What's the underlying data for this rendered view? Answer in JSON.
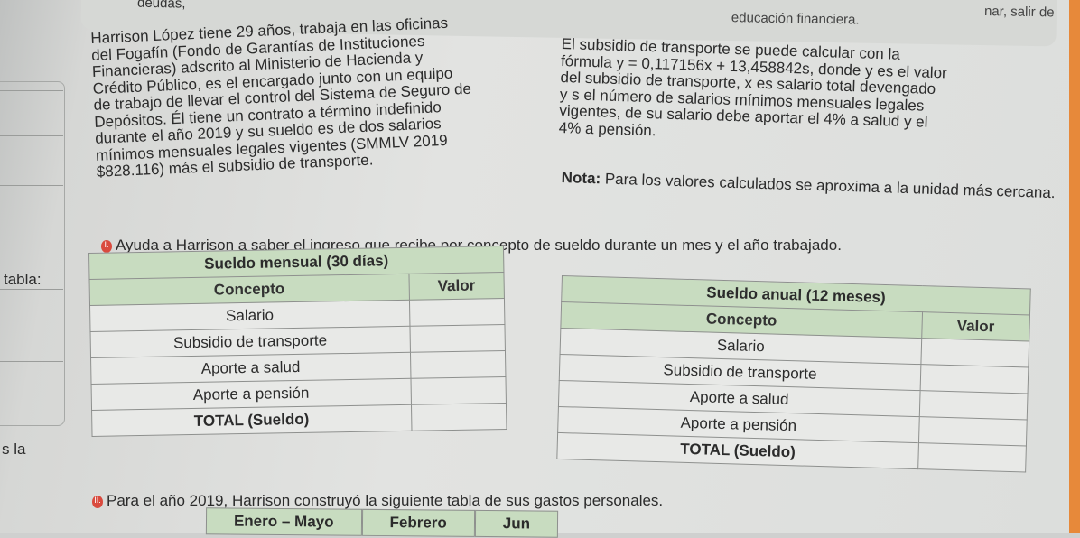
{
  "top": {
    "left_fragment": "deudas,",
    "center_fragment": "educación financiera.",
    "right_fragment": "nar, salir de"
  },
  "paragraph_left": [
    "Harrison López tiene 29 años, trabaja en las oficinas",
    "del Fogafín (Fondo de Garantías de Instituciones",
    "Financieras) adscrito al Ministerio de Hacienda y",
    "Crédito Público, es el encargado junto con un equipo",
    "de trabajo de llevar el control del Sistema de Seguro de",
    "Depósitos. Él tiene un contrato a término indefinido",
    "durante el año 2019 y su sueldo es de dos salarios",
    "mínimos mensuales legales vigentes (SMMLV 2019",
    "$828.116) más el subsidio de transporte."
  ],
  "paragraph_right": [
    "El subsidio de transporte se puede calcular con la",
    "fórmula y = 0,117156x + 13,458842s, donde y es el valor",
    "del subsidio de transporte, x es salario total devengado",
    "y s el número de salarios mínimos mensuales legales",
    "vigentes, de su salario debe aportar el 4% a salud y el",
    "4% a pensión."
  ],
  "note": {
    "label": "Nota:",
    "text": " Para los valores calculados se aproxima a la unidad más cercana."
  },
  "task1": {
    "number": "I.",
    "text": "Ayuda a Harrison a saber el ingreso que recibe por concepto de sueldo durante un mes y el año trabajado."
  },
  "task2": {
    "number": "II.",
    "text": "Para el año 2019, Harrison construyó la siguiente tabla de sus gastos personales."
  },
  "margin_labels": [
    "tabla:",
    "s la"
  ],
  "table_monthly": {
    "caption": "Sueldo mensual (30 días)",
    "headers": [
      "Concepto",
      "Valor"
    ],
    "rows": [
      "Salario",
      "Subsidio de transporte",
      "Aporte a salud",
      "Aporte a pensión",
      "TOTAL (Sueldo)"
    ]
  },
  "table_annual": {
    "caption": "Sueldo anual (12 meses)",
    "headers": [
      "Concepto",
      "Valor"
    ],
    "rows": [
      "Salario",
      "Subsidio de transporte",
      "Aporte a salud",
      "Aporte a pensión",
      "TOTAL (Sueldo)"
    ]
  },
  "bottom_headers": [
    "Enero – Mayo",
    "Febrero",
    "Jun"
  ]
}
